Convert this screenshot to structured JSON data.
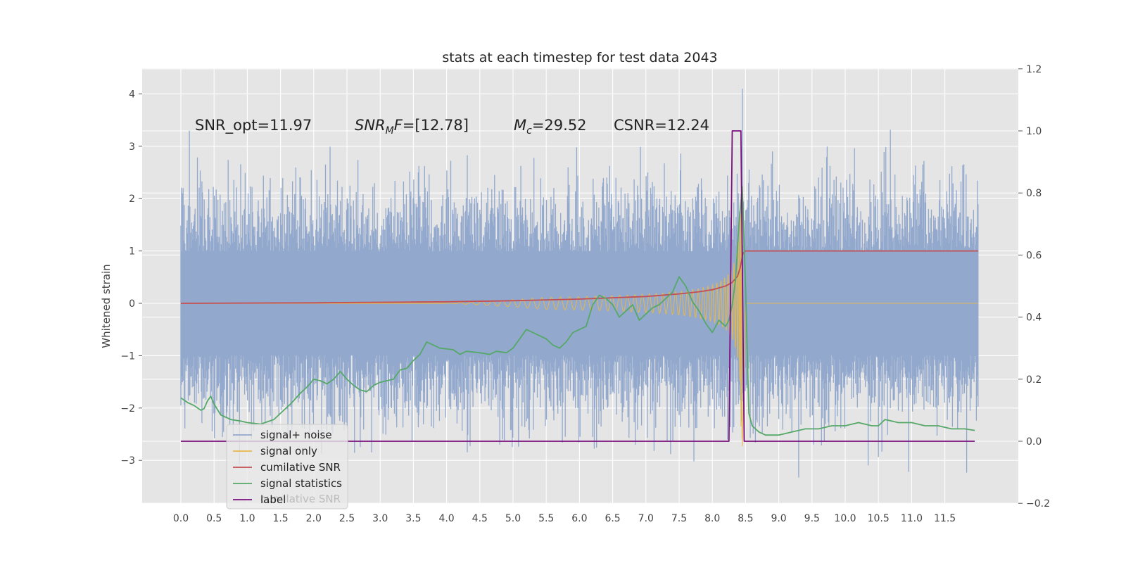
{
  "chart_data": {
    "type": "line",
    "title": "stats at each timestep for test data 2043",
    "ylabel": "Whitened strain",
    "xlabel": "",
    "xlim": [
      -0.5,
      12.55
    ],
    "ylim": [
      -3.8,
      4.45
    ],
    "y2lim": [
      -0.2,
      1.2
    ],
    "x_ticks": [
      "0.0",
      "0.5",
      "1.0",
      "1.5",
      "2.0",
      "2.5",
      "3.0",
      "3.5",
      "4.0",
      "4.5",
      "5.0",
      "5.5",
      "6.0",
      "6.5",
      "7.0",
      "7.5",
      "8.0",
      "8.5",
      "9.0",
      "9.5",
      "10.0",
      "10.5",
      "11.0",
      "11.5"
    ],
    "y_ticks": [
      4,
      3,
      2,
      1,
      0,
      -1,
      -2,
      -3
    ],
    "y_tick_labels": [
      "4",
      "3",
      "2",
      "1",
      "0",
      "−1",
      "−2",
      "−3"
    ],
    "y2_ticks": [
      1.2,
      1.0,
      0.8,
      0.6,
      0.4,
      0.2,
      0.0,
      -0.2
    ],
    "y2_tick_labels": [
      "1.2",
      "1.0",
      "0.8",
      "0.6",
      "0.4",
      "0.2",
      "0.0",
      "−0.2"
    ],
    "grid": true,
    "legend_position": "lower-left",
    "annotations": {
      "snr_opt": "SNR_opt=11.97",
      "snr_mf_sym": "SNR",
      "snr_mf_sub": "M",
      "snr_mf_rest": "F",
      "snr_mf_val": "=[12.78]",
      "mc_sym": "M",
      "mc_sub": "c",
      "mc_val": "=29.52",
      "csnr": "CSNR=12.24"
    },
    "series": [
      {
        "name": "signal+ noise",
        "color": "#92a8cd",
        "axis": "left",
        "description_stats": {
          "x_start": 0.0,
          "x_end": 12.0,
          "typical_amplitude": 1.0,
          "peak": 4.1,
          "peak_x": 8.45
        }
      },
      {
        "name": "signal only",
        "color": "#e8b84a",
        "axis": "left",
        "chirp": {
          "x_start": 4.0,
          "merger_x": 8.45,
          "peak_amplitude": 2.6,
          "end_x": 12.0
        }
      },
      {
        "name": "cumilative SNR",
        "color": "#c44e52",
        "axis": "left",
        "x": [
          0.0,
          1.0,
          2.0,
          3.0,
          4.0,
          5.0,
          6.0,
          7.0,
          7.5,
          7.8,
          8.0,
          8.2,
          8.3,
          8.38,
          8.42,
          8.46,
          8.5,
          12.0
        ],
        "y": [
          0.0,
          0.005,
          0.01,
          0.02,
          0.03,
          0.05,
          0.08,
          0.13,
          0.18,
          0.22,
          0.26,
          0.33,
          0.4,
          0.52,
          0.68,
          0.95,
          1.0,
          1.0
        ]
      },
      {
        "name": "signal statistics",
        "color": "#55a868",
        "axis": "right",
        "x": [
          0.0,
          0.1,
          0.2,
          0.3,
          0.35,
          0.4,
          0.45,
          0.5,
          0.6,
          0.75,
          0.9,
          1.0,
          1.2,
          1.4,
          1.55,
          1.65,
          1.8,
          1.9,
          2.0,
          2.1,
          2.2,
          2.3,
          2.4,
          2.5,
          2.6,
          2.7,
          2.8,
          2.9,
          3.0,
          3.2,
          3.3,
          3.4,
          3.5,
          3.6,
          3.65,
          3.7,
          3.8,
          3.9,
          4.1,
          4.2,
          4.3,
          4.5,
          4.65,
          4.75,
          4.9,
          5.0,
          5.1,
          5.2,
          5.3,
          5.4,
          5.5,
          5.6,
          5.7,
          5.8,
          5.9,
          6.0,
          6.1,
          6.2,
          6.3,
          6.4,
          6.5,
          6.6,
          6.7,
          6.8,
          6.9,
          7.0,
          7.1,
          7.2,
          7.3,
          7.4,
          7.5,
          7.6,
          7.7,
          7.8,
          7.9,
          8.0,
          8.1,
          8.2,
          8.25,
          8.3,
          8.35,
          8.4,
          8.45,
          8.5,
          8.55,
          8.6,
          8.7,
          8.8,
          9.0,
          9.2,
          9.4,
          9.6,
          9.8,
          10.0,
          10.2,
          10.4,
          10.5,
          10.6,
          10.8,
          11.0,
          11.2,
          11.4,
          11.6,
          11.8,
          11.95
        ],
        "y": [
          0.14,
          0.125,
          0.115,
          0.1,
          0.105,
          0.13,
          0.145,
          0.12,
          0.085,
          0.07,
          0.065,
          0.06,
          0.055,
          0.07,
          0.1,
          0.12,
          0.155,
          0.175,
          0.2,
          0.195,
          0.185,
          0.2,
          0.225,
          0.2,
          0.18,
          0.165,
          0.16,
          0.18,
          0.19,
          0.2,
          0.23,
          0.235,
          0.26,
          0.28,
          0.3,
          0.32,
          0.31,
          0.3,
          0.295,
          0.28,
          0.29,
          0.285,
          0.28,
          0.29,
          0.285,
          0.3,
          0.33,
          0.36,
          0.35,
          0.34,
          0.33,
          0.31,
          0.3,
          0.32,
          0.35,
          0.36,
          0.37,
          0.44,
          0.47,
          0.46,
          0.44,
          0.4,
          0.42,
          0.44,
          0.39,
          0.41,
          0.43,
          0.44,
          0.46,
          0.48,
          0.53,
          0.5,
          0.45,
          0.42,
          0.38,
          0.35,
          0.39,
          0.37,
          0.39,
          0.44,
          0.52,
          0.7,
          0.82,
          0.5,
          0.09,
          0.05,
          0.03,
          0.02,
          0.02,
          0.03,
          0.04,
          0.04,
          0.05,
          0.05,
          0.06,
          0.05,
          0.05,
          0.07,
          0.06,
          0.06,
          0.05,
          0.05,
          0.04,
          0.04,
          0.035
        ]
      },
      {
        "name": "label",
        "color": "#7b0f7f",
        "axis": "right",
        "x": [
          0.0,
          8.25,
          8.3,
          8.43,
          8.48,
          8.5,
          11.95
        ],
        "y": [
          0.0,
          0.0,
          1.0,
          1.0,
          0.0,
          0.0,
          0.0
        ]
      }
    ],
    "ghost_legend_text": "cumilative SNR"
  }
}
